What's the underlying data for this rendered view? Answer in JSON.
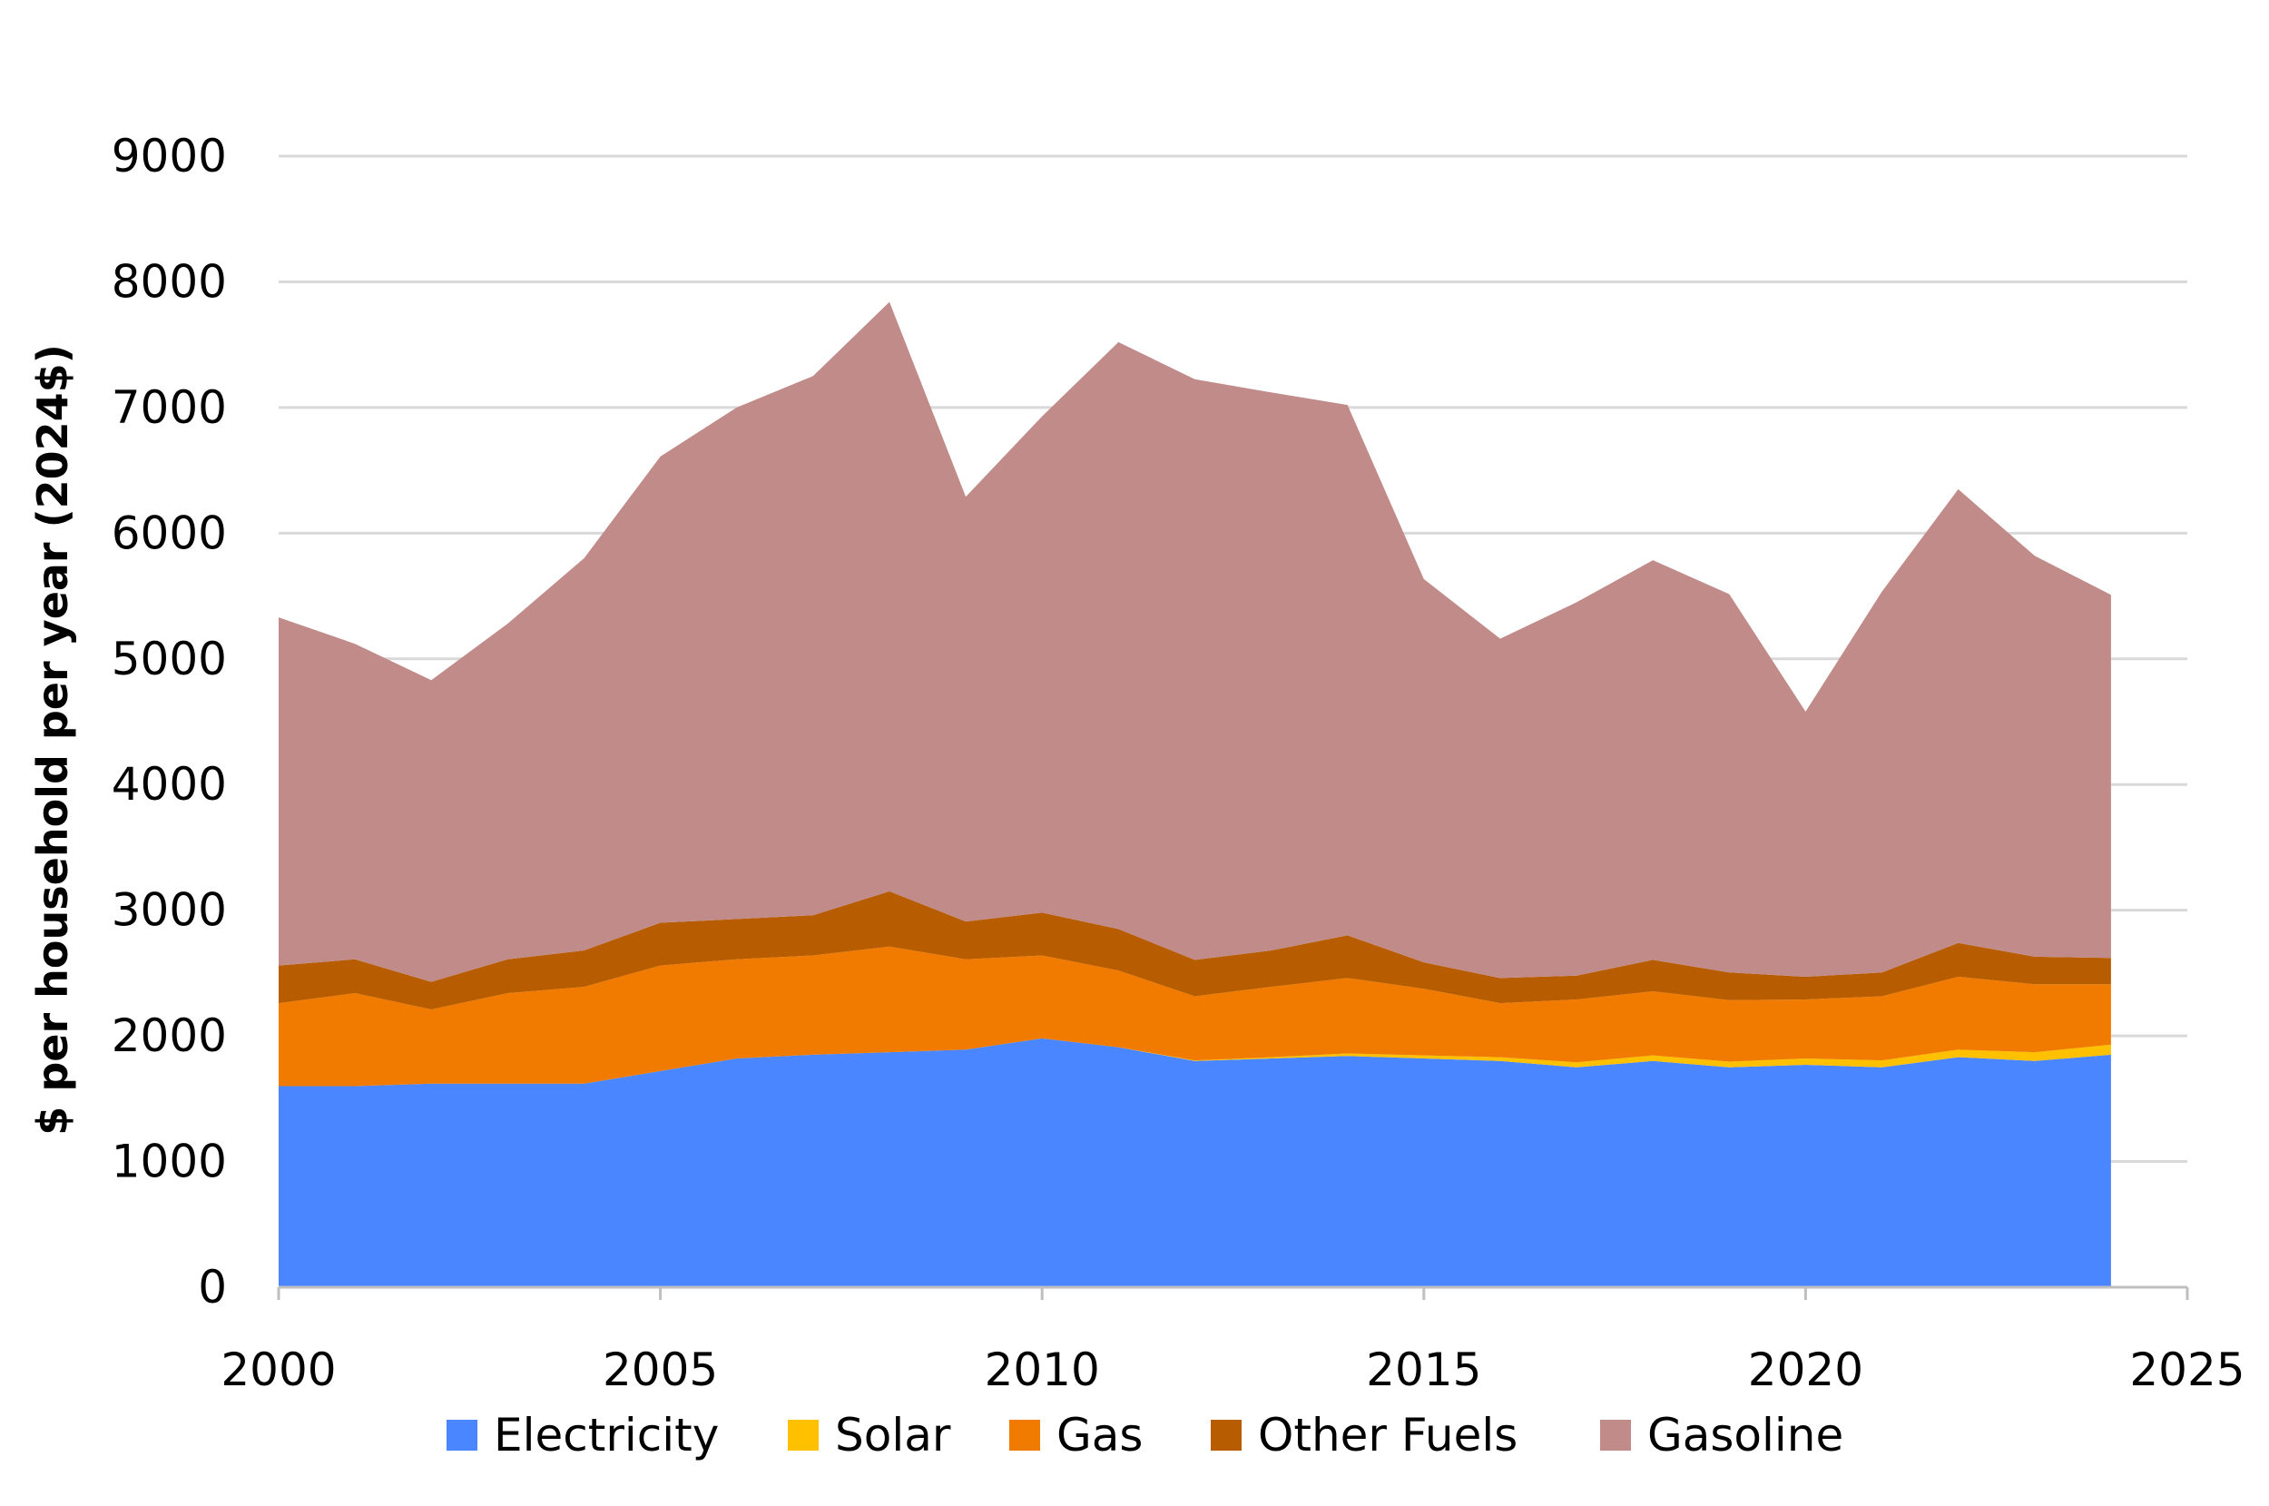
{
  "chart_data": {
    "type": "area",
    "stacked": true,
    "title": "",
    "xlabel": "",
    "ylabel": "$ per household per year (2024$)",
    "x": [
      2000,
      2001,
      2002,
      2003,
      2004,
      2005,
      2006,
      2007,
      2008,
      2009,
      2010,
      2011,
      2012,
      2013,
      2014,
      2015,
      2016,
      2017,
      2018,
      2019,
      2020,
      2021,
      2022,
      2023,
      2024
    ],
    "xlim": [
      2000,
      2025
    ],
    "xticks": [
      2000,
      2005,
      2010,
      2015,
      2020,
      2025
    ],
    "ylim": [
      0,
      9000
    ],
    "yticks": [
      0,
      1000,
      2000,
      3000,
      4000,
      5000,
      6000,
      7000,
      8000,
      9000
    ],
    "grid": "horizontal",
    "legend": "bottom",
    "series": [
      {
        "name": "Electricity",
        "color": "#4A86FF",
        "values": [
          1600,
          1600,
          1620,
          1620,
          1620,
          1720,
          1820,
          1850,
          1870,
          1890,
          1980,
          1910,
          1800,
          1820,
          1840,
          1820,
          1800,
          1750,
          1800,
          1750,
          1770,
          1750,
          1830,
          1800,
          1850
        ]
      },
      {
        "name": "Solar",
        "color": "#FFC000",
        "values": [
          0,
          0,
          0,
          0,
          0,
          0,
          0,
          0,
          0,
          0,
          0,
          0,
          5,
          10,
          20,
          25,
          30,
          40,
          45,
          45,
          50,
          55,
          60,
          70,
          80
        ]
      },
      {
        "name": "Gas",
        "color": "#F07B00",
        "values": [
          660,
          740,
          590,
          720,
          770,
          840,
          790,
          790,
          840,
          720,
          660,
          610,
          510,
          560,
          600,
          530,
          430,
          500,
          510,
          490,
          470,
          510,
          580,
          540,
          480
        ]
      },
      {
        "name": "Other Fuels",
        "color": "#B85C00",
        "values": [
          300,
          270,
          220,
          270,
          290,
          340,
          320,
          320,
          440,
          300,
          340,
          330,
          290,
          290,
          340,
          210,
          200,
          190,
          250,
          220,
          180,
          190,
          270,
          220,
          210
        ]
      },
      {
        "name": "Gasoline",
        "color": "#C08B89",
        "values": [
          2770,
          2510,
          2400,
          2670,
          3120,
          3710,
          4070,
          4290,
          4690,
          3380,
          3950,
          4670,
          4620,
          4440,
          4220,
          3050,
          2700,
          2970,
          3180,
          3010,
          2110,
          3030,
          3610,
          3190,
          2890
        ]
      }
    ]
  }
}
